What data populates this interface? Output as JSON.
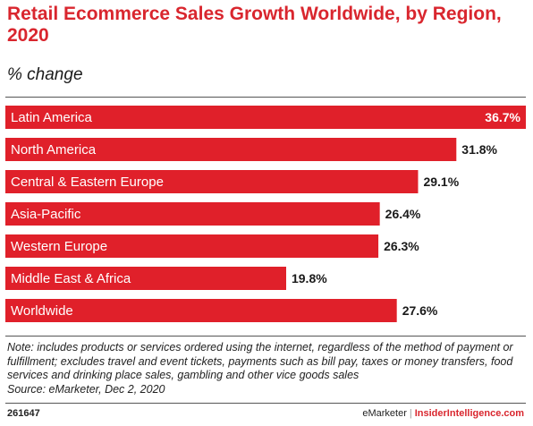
{
  "chart_data": {
    "type": "bar",
    "orientation": "horizontal",
    "title": "Retail Ecommerce Sales Growth Worldwide, by Region, 2020",
    "subtitle": "% change",
    "categories": [
      "Latin America",
      "North America",
      "Central & Eastern Europe",
      "Asia-Pacific",
      "Western Europe",
      "Middle East & Africa",
      "Worldwide"
    ],
    "values": [
      36.7,
      31.8,
      29.1,
      26.4,
      26.3,
      19.8,
      27.6
    ],
    "value_labels": [
      "36.7%",
      "31.8%",
      "29.1%",
      "26.4%",
      "26.3%",
      "19.8%",
      "27.6%"
    ],
    "xlim": [
      0,
      36.7
    ],
    "bar_color": "#e0202a",
    "grid": false
  },
  "note": "Note: includes products or services ordered using the internet, regardless of the method of payment or fulfillment; excludes travel and event tickets, payments such as bill pay, taxes or money transfers, food services and drinking place sales, gambling and other vice goods sales",
  "source": "Source: eMarketer, Dec 2, 2020",
  "chart_id": "261647",
  "brand": {
    "emarketer": "eMarketer",
    "insider": "InsiderIntelligence.com"
  }
}
